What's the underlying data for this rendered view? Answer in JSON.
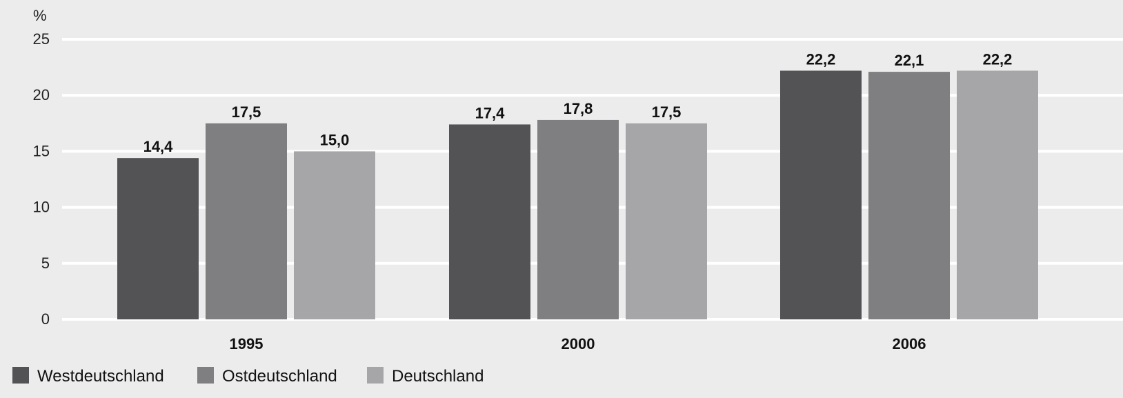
{
  "colors": {
    "background": "#ececec",
    "gridline": "#ffffff",
    "westdeutschland": "#535356",
    "ostdeutschland": "#7f7f81",
    "deutschland": "#a6a6a8"
  },
  "chart_data": {
    "type": "bar",
    "title": "",
    "xlabel": "",
    "ylabel": "%",
    "ylim": [
      0,
      25
    ],
    "yticks": [
      "0",
      "5",
      "10",
      "15",
      "20",
      "25"
    ],
    "grid": true,
    "legend_position": "bottom-left",
    "categories": [
      "1995",
      "2000",
      "2006"
    ],
    "series": [
      {
        "name": "Westdeutschland",
        "values": [
          14.4,
          17.4,
          22.2
        ],
        "labels": [
          "14,4",
          "17,4",
          "22,2"
        ],
        "color": "#535356"
      },
      {
        "name": "Ostdeutschland",
        "values": [
          17.5,
          17.8,
          22.1
        ],
        "labels": [
          "17,5",
          "17,8",
          "22,1"
        ],
        "color": "#7f7f81"
      },
      {
        "name": "Deutschland",
        "values": [
          15.0,
          17.5,
          22.2
        ],
        "labels": [
          "15,0",
          "17,5",
          "22,2"
        ],
        "color": "#a6a6a8"
      }
    ]
  }
}
